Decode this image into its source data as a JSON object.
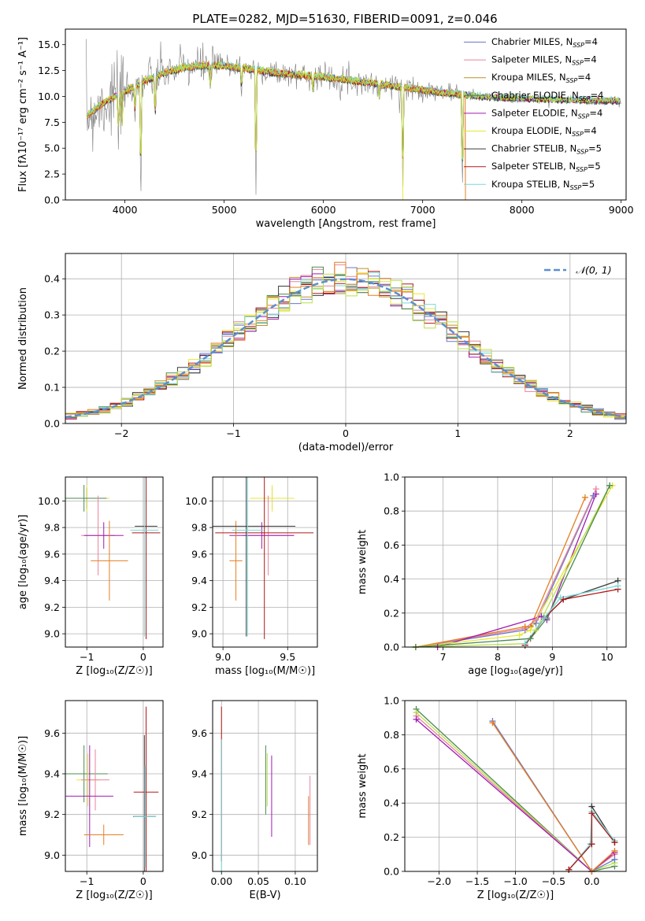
{
  "figure_title": "PLATE=0282, MJD=51630, FIBERID=0091, z=0.046",
  "colors": {
    "chabrier_miles": "#6a78c8",
    "salpeter_miles": "#e8849c",
    "kroupa_miles": "#c0902a",
    "chabrier_elodie": "#4c8a52",
    "salpeter_elodie": "#a01cb4",
    "kroupa_elodie": "#e8e830",
    "chabrier_stelib": "#3a3a3a",
    "salpeter_stelib": "#b01818",
    "kroupa_stelib": "#7ad8d8",
    "data": "#808080",
    "normal_curve": "#5a8fd0",
    "orange": "#e67e22",
    "yellowgreen": "#b8e04a"
  },
  "chart_data": [
    {
      "id": "spectrum",
      "type": "line",
      "title": "PLATE=0282, MJD=51630, FIBERID=0091, z=0.046",
      "xlabel": "wavelength [Angstrom, rest frame]",
      "ylabel": "Flux [fλ10⁻¹⁷ erg cm⁻² s⁻¹ A⁻¹]",
      "xlim": [
        3400,
        9050
      ],
      "ylim": [
        0,
        16.5
      ],
      "xticks": [
        4000,
        5000,
        6000,
        7000,
        8000,
        9000
      ],
      "yticks": [
        0.0,
        2.5,
        5.0,
        7.5,
        10.0,
        12.5,
        15.0
      ],
      "grid": false,
      "legend_position": "top-right",
      "legend": [
        {
          "label": "Chabrier MILES, N",
          "sub": "SSP",
          "suffix": "=4",
          "color_key": "chabrier_miles"
        },
        {
          "label": "Salpeter MILES, N",
          "sub": "SSP",
          "suffix": "=4",
          "color_key": "salpeter_miles"
        },
        {
          "label": "Kroupa MILES, N",
          "sub": "SSP",
          "suffix": "=4",
          "color_key": "kroupa_miles"
        },
        {
          "label": "Chabrier ELODIE, N",
          "sub": "SSP",
          "suffix": "=4",
          "color_key": "chabrier_elodie"
        },
        {
          "label": "Salpeter ELODIE, N",
          "sub": "SSP",
          "suffix": "=4",
          "color_key": "salpeter_elodie"
        },
        {
          "label": "Kroupa ELODIE, N",
          "sub": "SSP",
          "suffix": "=4",
          "color_key": "kroupa_elodie"
        },
        {
          "label": "Chabrier STELIB, N",
          "sub": "SSP",
          "suffix": "=5",
          "color_key": "chabrier_stelib"
        },
        {
          "label": "Salpeter STELIB, N",
          "sub": "SSP",
          "suffix": "=5",
          "color_key": "salpeter_stelib"
        },
        {
          "label": "Kroupa STELIB, N",
          "sub": "SSP",
          "suffix": "=5",
          "color_key": "kroupa_stelib"
        }
      ],
      "continuum": {
        "x": [
          3600,
          3800,
          4000,
          4200,
          4400,
          4600,
          4800,
          5000,
          5300,
          5600,
          6000,
          6400,
          6800,
          7200,
          7400,
          7600,
          8000,
          8400,
          8800
        ],
        "y": [
          8.0,
          9.5,
          10.5,
          11.5,
          12.3,
          12.8,
          13.0,
          13.0,
          12.6,
          12.2,
          11.9,
          11.4,
          10.9,
          10.4,
          10.2,
          10.0,
          9.8,
          9.7,
          9.6
        ]
      },
      "absorption_features": [
        {
          "x": 3935,
          "y": 6.0
        },
        {
          "x": 3970,
          "y": 6.5
        },
        {
          "x": 4102,
          "y": 8.2
        },
        {
          "x": 4160,
          "y": 0.0
        },
        {
          "x": 4305,
          "y": 7.2
        },
        {
          "x": 4861,
          "y": 10.5
        },
        {
          "x": 5175,
          "y": 10.6
        },
        {
          "x": 5320,
          "y": 0.0
        },
        {
          "x": 5893,
          "y": 10.3
        },
        {
          "x": 6563,
          "y": 9.8
        },
        {
          "x": 6800,
          "y": 0.0
        },
        {
          "x": 7400,
          "y": 0.0
        }
      ],
      "model_cutoffs": [
        {
          "series": "kroupa_miles",
          "x": 7430
        },
        {
          "series": "orange",
          "x": 7430
        },
        {
          "series": "kroupa_elodie",
          "x": 6800
        }
      ]
    },
    {
      "id": "residuals",
      "type": "step",
      "xlabel": "(data-model)/error",
      "ylabel": "Normed distribution",
      "xlim": [
        -2.5,
        2.5
      ],
      "ylim": [
        0,
        0.47
      ],
      "xticks": [
        -2,
        -1,
        0,
        1,
        2
      ],
      "yticks": [
        0.0,
        0.1,
        0.2,
        0.3,
        0.4
      ],
      "grid": true,
      "legend_position": "top-right",
      "legend": [
        {
          "label": "𝒩(0, 1)",
          "color_key": "normal_curve"
        }
      ],
      "normal_curve": {
        "mean": 0,
        "sigma": 1
      },
      "bin_edges_start": -2.5,
      "bin_width": 0.1
    },
    {
      "id": "age_vs_Z",
      "type": "errorbar",
      "xlabel": "Z [log₁₀(Z/Z☉)]",
      "ylabel": "age  [log₁₀(age/yr)]",
      "xlim": [
        -1.38,
        0.35
      ],
      "ylim": [
        8.9,
        10.18
      ],
      "xticks": [
        -1,
        0
      ],
      "yticks": [
        9.0,
        9.2,
        9.4,
        9.6,
        9.8,
        10.0
      ],
      "grid": true,
      "points": [
        {
          "color_key": "chabrier_miles",
          "x": -1.0,
          "xerr": 0.35,
          "y": 10.02,
          "yerr": 0.08
        },
        {
          "color_key": "kroupa_elodie",
          "x": -1.0,
          "xerr": 0.4,
          "y": 10.02,
          "yerr": 0.1
        },
        {
          "color_key": "chabrier_elodie",
          "x": -1.05,
          "xerr": 0.4,
          "y": 10.02,
          "yerr": 0.1
        },
        {
          "color_key": "salpeter_miles",
          "x": -0.8,
          "xerr": 0.3,
          "y": 9.74,
          "yerr": 0.3
        },
        {
          "color_key": "salpeter_elodie",
          "x": -0.7,
          "xerr": 0.35,
          "y": 9.74,
          "yerr": 0.1
        },
        {
          "color_key": "orange",
          "x": -0.6,
          "xerr": 0.33,
          "y": 9.55,
          "yerr": 0.3
        },
        {
          "color_key": "chabrier_stelib",
          "x": 0.05,
          "xerr": 0.2,
          "y": 9.81,
          "yerr": 0.83
        },
        {
          "color_key": "salpeter_stelib",
          "x": 0.05,
          "xerr": 0.25,
          "y": 9.76,
          "yerr": 0.8
        },
        {
          "color_key": "kroupa_stelib",
          "x": 0.02,
          "xerr": 0.25,
          "y": 9.78,
          "yerr": 0.8
        }
      ]
    },
    {
      "id": "age_vs_mass",
      "type": "errorbar",
      "xlabel": "mass [log₁₀(M/M☉)]",
      "ylabel": "",
      "xlim": [
        8.92,
        9.73
      ],
      "ylim": [
        8.9,
        10.18
      ],
      "xticks": [
        9.0,
        9.5
      ],
      "yticks": [
        9.0,
        9.2,
        9.4,
        9.6,
        9.8,
        10.0
      ],
      "grid": true,
      "points": [
        {
          "color_key": "chabrier_miles",
          "x": 9.38,
          "xerr": 0.17,
          "y": 10.02,
          "yerr": 0.08
        },
        {
          "color_key": "kroupa_elodie",
          "x": 9.38,
          "xerr": 0.17,
          "y": 10.02,
          "yerr": 0.1
        },
        {
          "color_key": "salpeter_miles",
          "x": 9.35,
          "xerr": 0.2,
          "y": 9.74,
          "yerr": 0.3
        },
        {
          "color_key": "salpeter_elodie",
          "x": 9.3,
          "xerr": 0.25,
          "y": 9.74,
          "yerr": 0.1
        },
        {
          "color_key": "orange",
          "x": 9.1,
          "xerr": 0.05,
          "y": 9.55,
          "yerr": 0.3
        },
        {
          "color_key": "chabrier_stelib",
          "x": 9.18,
          "xerr": 0.38,
          "y": 9.81,
          "yerr": 0.83
        },
        {
          "color_key": "salpeter_stelib",
          "x": 9.32,
          "xerr": 0.38,
          "y": 9.76,
          "yerr": 0.8
        },
        {
          "color_key": "kroupa_stelib",
          "x": 9.19,
          "xerr": 0.12,
          "y": 9.78,
          "yerr": 0.8
        }
      ]
    },
    {
      "id": "weight_vs_age",
      "type": "line",
      "xlabel": "age  [log₁₀(age/yr)]",
      "ylabel": "mass weight",
      "xlim": [
        6.3,
        10.35
      ],
      "ylim": [
        0,
        1.0
      ],
      "xticks": [
        7,
        8,
        9,
        10
      ],
      "yticks": [
        0.0,
        0.2,
        0.4,
        0.6,
        0.8,
        1.0
      ],
      "grid": true,
      "series": [
        {
          "color_key": "chabrier_miles",
          "x": [
            6.5,
            8.5,
            8.7,
            9.75
          ],
          "y": [
            0.0,
            0.1,
            0.14,
            0.89
          ]
        },
        {
          "color_key": "salpeter_miles",
          "x": [
            6.5,
            8.5,
            8.7,
            9.8
          ],
          "y": [
            0.0,
            0.11,
            0.16,
            0.93
          ]
        },
        {
          "color_key": "orange",
          "x": [
            6.5,
            8.5,
            8.6,
            9.6
          ],
          "y": [
            0.0,
            0.12,
            0.12,
            0.88
          ]
        },
        {
          "color_key": "salpeter_elodie",
          "x": [
            6.9,
            8.8,
            8.9,
            9.8
          ],
          "y": [
            0.0,
            0.18,
            0.16,
            0.9
          ]
        },
        {
          "color_key": "kroupa_elodie",
          "x": [
            6.5,
            8.4,
            8.6,
            10.1
          ],
          "y": [
            0.0,
            0.07,
            0.1,
            0.95
          ]
        },
        {
          "color_key": "yellowgreen",
          "x": [
            6.5,
            8.5,
            8.7,
            10.05
          ],
          "y": [
            0.0,
            0.02,
            0.1,
            0.95
          ]
        },
        {
          "color_key": "chabrier_elodie",
          "x": [
            6.5,
            8.6,
            8.9,
            10.05
          ],
          "y": [
            0.0,
            0.05,
            0.17,
            0.95
          ]
        },
        {
          "color_key": "chabrier_stelib",
          "x": [
            8.5,
            8.85,
            9.2,
            10.2
          ],
          "y": [
            0.01,
            0.17,
            0.28,
            0.39
          ]
        },
        {
          "color_key": "salpeter_stelib",
          "x": [
            8.5,
            8.85,
            9.2,
            10.2
          ],
          "y": [
            0.01,
            0.17,
            0.28,
            0.34
          ]
        },
        {
          "color_key": "kroupa_stelib",
          "x": [
            8.5,
            8.85,
            9.15,
            10.2
          ],
          "y": [
            0.02,
            0.17,
            0.29,
            0.36
          ]
        }
      ]
    },
    {
      "id": "mass_vs_Z",
      "type": "errorbar",
      "xlabel": "Z [log₁₀(Z/Z☉)]",
      "ylabel": "mass [log₁₀(M/M☉)]",
      "xlim": [
        -1.38,
        0.35
      ],
      "ylim": [
        8.92,
        9.76
      ],
      "xticks": [
        -1,
        0
      ],
      "yticks": [
        9.0,
        9.2,
        9.4,
        9.6
      ],
      "grid": true,
      "points": [
        {
          "color_key": "chabrier_elodie",
          "x": -1.05,
          "xerr": 0.42,
          "y": 9.4,
          "yerr": 0.14
        },
        {
          "color_key": "kroupa_elodie",
          "x": -0.98,
          "xerr": 0.2,
          "y": 9.37,
          "yerr": 0.13
        },
        {
          "color_key": "salpeter_miles",
          "x": -0.85,
          "xerr": 0.25,
          "y": 9.37,
          "yerr": 0.15
        },
        {
          "color_key": "salpeter_elodie",
          "x": -0.95,
          "xerr": 0.42,
          "y": 9.29,
          "yerr": 0.25
        },
        {
          "color_key": "orange",
          "x": -0.7,
          "xerr": 0.35,
          "y": 9.1,
          "yerr": 0.05
        },
        {
          "color_key": "chabrier_stelib",
          "x": 0.02,
          "xerr": 0.2,
          "y": 9.19,
          "yerr": 0.4
        },
        {
          "color_key": "salpeter_stelib",
          "x": 0.05,
          "xerr": 0.22,
          "y": 9.31,
          "yerr": 0.42
        },
        {
          "color_key": "kroupa_stelib",
          "x": 0.03,
          "xerr": 0.2,
          "y": 9.19,
          "yerr": 0.25
        }
      ]
    },
    {
      "id": "mass_vs_ebv",
      "type": "errorbar",
      "xlabel": "E(B-V)",
      "ylabel": "",
      "xlim": [
        -0.012,
        0.13
      ],
      "ylim": [
        8.92,
        9.76
      ],
      "xticks": [
        0.0,
        0.05,
        0.1
      ],
      "xticklabels": [
        "0.00",
        "0.05",
        "0.10"
      ],
      "yticks": [
        9.0,
        9.2,
        9.4,
        9.6
      ],
      "grid": true,
      "points": [
        {
          "color_key": "salpeter_stelib",
          "x": 0.0,
          "xerr": 0.0,
          "y": 9.35,
          "yerr": 0.38
        },
        {
          "color_key": "kroupa_stelib",
          "x": 0.0,
          "xerr": 0.0,
          "y": 9.2,
          "yerr": 0.37
        },
        {
          "color_key": "chabrier_elodie",
          "x": 0.06,
          "xerr": 0.0,
          "y": 9.37,
          "yerr": 0.17
        },
        {
          "color_key": "yellowgreen",
          "x": 0.062,
          "xerr": 0.0,
          "y": 9.37,
          "yerr": 0.13
        },
        {
          "color_key": "salpeter_elodie",
          "x": 0.068,
          "xerr": 0.0,
          "y": 9.29,
          "yerr": 0.2
        },
        {
          "color_key": "orange",
          "x": 0.118,
          "xerr": 0.0,
          "y": 9.17,
          "yerr": 0.12
        },
        {
          "color_key": "salpeter_miles",
          "x": 0.12,
          "xerr": 0.0,
          "y": 9.22,
          "yerr": 0.17
        }
      ]
    },
    {
      "id": "weight_vs_Z",
      "type": "line",
      "xlabel": "Z [log₁₀(Z/Z☉)]",
      "ylabel": "mass weight",
      "xlim": [
        -2.45,
        0.45
      ],
      "ylim": [
        0,
        1.0
      ],
      "xticks": [
        -2.0,
        -1.5,
        -1.0,
        -0.5,
        0.0
      ],
      "xticklabels": [
        "−2.0",
        "−1.5",
        "−1.0",
        "−0.5",
        "0.0"
      ],
      "yticks": [
        0.0,
        0.2,
        0.4,
        0.6,
        0.8,
        1.0
      ],
      "grid": true,
      "series": [
        {
          "color_key": "chabrier_elodie",
          "x": [
            -2.3,
            0.0,
            0.3
          ],
          "y": [
            0.95,
            0.0,
            0.03
          ]
        },
        {
          "color_key": "yellowgreen",
          "x": [
            -2.3,
            0.0,
            0.3
          ],
          "y": [
            0.93,
            0.0,
            0.05
          ]
        },
        {
          "color_key": "salpeter_miles",
          "x": [
            -2.3,
            0.0,
            0.3
          ],
          "y": [
            0.91,
            0.0,
            0.1
          ]
        },
        {
          "color_key": "salpeter_elodie",
          "x": [
            -2.3,
            0.0,
            0.3
          ],
          "y": [
            0.89,
            0.0,
            0.11
          ]
        },
        {
          "color_key": "chabrier_miles",
          "x": [
            -1.3,
            0.0,
            0.3
          ],
          "y": [
            0.88,
            0.0,
            0.07
          ]
        },
        {
          "color_key": "orange",
          "x": [
            -1.3,
            0.0,
            0.3
          ],
          "y": [
            0.87,
            0.0,
            0.12
          ]
        },
        {
          "color_key": "chabrier_stelib",
          "x": [
            -0.3,
            0.0,
            0.0,
            0.3
          ],
          "y": [
            0.01,
            0.16,
            0.38,
            0.17
          ]
        },
        {
          "color_key": "kroupa_stelib",
          "x": [
            -0.3,
            -0.02,
            0.0,
            0.3
          ],
          "y": [
            0.01,
            0.16,
            0.35,
            0.18
          ]
        },
        {
          "color_key": "salpeter_stelib",
          "x": [
            -0.3,
            0.0,
            0.0,
            0.3
          ],
          "y": [
            0.01,
            0.16,
            0.34,
            0.17
          ]
        }
      ]
    }
  ]
}
